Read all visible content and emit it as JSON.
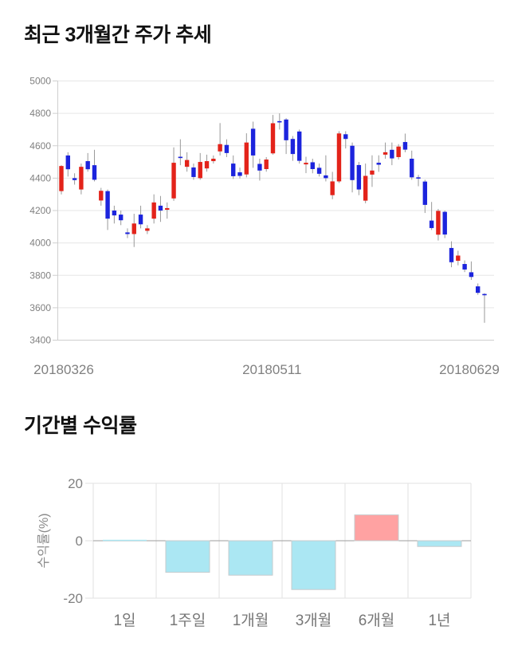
{
  "page": {
    "background": "#ffffff"
  },
  "chart_data": [
    {
      "type": "candlestick",
      "title": "최근 3개월간 주가 추세",
      "ylim": [
        3400,
        5000
      ],
      "y_ticks": [
        5000,
        4800,
        4600,
        4400,
        4200,
        4000,
        3800,
        3600,
        3400
      ],
      "x_tick_labels": [
        "20180326",
        "20180511",
        "20180629"
      ],
      "grid": true,
      "legend": "none",
      "colors": {
        "up": "#e3231a",
        "down": "#1c24dd",
        "wick": "#999999",
        "grid": "#e6e6e6",
        "axis": "#cfcfcf",
        "tick_label": "#808080"
      },
      "ohlc": [
        [
          4320,
          4480,
          4300,
          4475
        ],
        [
          4540,
          4560,
          4410,
          4455
        ],
        [
          4400,
          4430,
          4360,
          4388
        ],
        [
          4330,
          4490,
          4300,
          4470
        ],
        [
          4505,
          4555,
          4440,
          4455
        ],
        [
          4480,
          4575,
          4380,
          4390
        ],
        [
          4262,
          4340,
          4230,
          4322
        ],
        [
          4320,
          4330,
          4080,
          4150
        ],
        [
          4200,
          4230,
          4120,
          4170
        ],
        [
          4175,
          4200,
          4110,
          4140
        ],
        [
          4065,
          4090,
          4030,
          4055
        ],
        [
          4055,
          4180,
          3975,
          4120
        ],
        [
          4175,
          4230,
          4090,
          4115
        ],
        [
          4075,
          4110,
          4055,
          4090
        ],
        [
          4150,
          4300,
          4120,
          4250
        ],
        [
          4230,
          4290,
          4130,
          4200
        ],
        [
          4205,
          4250,
          4150,
          4215
        ],
        [
          4275,
          4590,
          4260,
          4495
        ],
        [
          4532,
          4640,
          4480,
          4525
        ],
        [
          4470,
          4560,
          4440,
          4512
        ],
        [
          4466,
          4490,
          4390,
          4407
        ],
        [
          4400,
          4555,
          4390,
          4500
        ],
        [
          4460,
          4545,
          4440,
          4505
        ],
        [
          4505,
          4540,
          4490,
          4520
        ],
        [
          4565,
          4740,
          4540,
          4610
        ],
        [
          4605,
          4640,
          4530,
          4555
        ],
        [
          4490,
          4540,
          4395,
          4412
        ],
        [
          4436,
          4465,
          4398,
          4414
        ],
        [
          4423,
          4677,
          4405,
          4620
        ],
        [
          4705,
          4749,
          4464,
          4540
        ],
        [
          4488,
          4520,
          4385,
          4447
        ],
        [
          4456,
          4530,
          4440,
          4515
        ],
        [
          4553,
          4790,
          4545,
          4739
        ],
        [
          4752,
          4800,
          4700,
          4748
        ],
        [
          4762,
          4770,
          4549,
          4634
        ],
        [
          4642,
          4660,
          4507,
          4549
        ],
        [
          4688,
          4700,
          4490,
          4507
        ],
        [
          4485,
          4532,
          4431,
          4495
        ],
        [
          4498,
          4520,
          4430,
          4456
        ],
        [
          4464,
          4490,
          4410,
          4427
        ],
        [
          4417,
          4541,
          4380,
          4400
        ],
        [
          4295,
          4439,
          4270,
          4380
        ],
        [
          4380,
          4690,
          4370,
          4676
        ],
        [
          4671,
          4690,
          4583,
          4642
        ],
        [
          4600,
          4620,
          4312,
          4388
        ],
        [
          4481,
          4500,
          4295,
          4330
        ],
        [
          4261,
          4490,
          4245,
          4414
        ],
        [
          4422,
          4541,
          4346,
          4447
        ],
        [
          4495,
          4541,
          4439,
          4483
        ],
        [
          4545,
          4620,
          4520,
          4560
        ],
        [
          4575,
          4620,
          4480,
          4522
        ],
        [
          4530,
          4610,
          4515,
          4595
        ],
        [
          4623,
          4675,
          4560,
          4576
        ],
        [
          4520,
          4570,
          4390,
          4405
        ],
        [
          4405,
          4420,
          4350,
          4398
        ],
        [
          4379,
          4390,
          4185,
          4235
        ],
        [
          4138,
          4253,
          4080,
          4092
        ],
        [
          4051,
          4210,
          4015,
          4198
        ],
        [
          4192,
          4200,
          4030,
          4052
        ],
        [
          3969,
          4010,
          3850,
          3881
        ],
        [
          3890,
          3952,
          3862,
          3922
        ],
        [
          3870,
          3892,
          3820,
          3836
        ],
        [
          3819,
          3886,
          3772,
          3790
        ],
        [
          3732,
          3750,
          3680,
          3692
        ],
        [
          3685,
          3690,
          3507,
          3680
        ]
      ]
    },
    {
      "type": "bar",
      "title": "기간별 수익률",
      "ylabel": "수익률(%)",
      "ylim": [
        -20,
        20
      ],
      "y_ticks": [
        20,
        0,
        -20
      ],
      "categories": [
        "1일",
        "1주일",
        "1개월",
        "3개월",
        "6개월",
        "1년"
      ],
      "values": [
        0,
        -11,
        -12,
        -17,
        9,
        -2
      ],
      "grid": true,
      "legend": "none",
      "colors": {
        "positive": "#ffa2a2",
        "negative": "#abe7f3",
        "bar_border": "#c6cbce",
        "zero_line": "#9e9e9e",
        "grid": "#e2e2e2",
        "tick_label": "#808080",
        "category_label": "#777777",
        "ylabel_color": "#8a8a8a"
      }
    }
  ]
}
